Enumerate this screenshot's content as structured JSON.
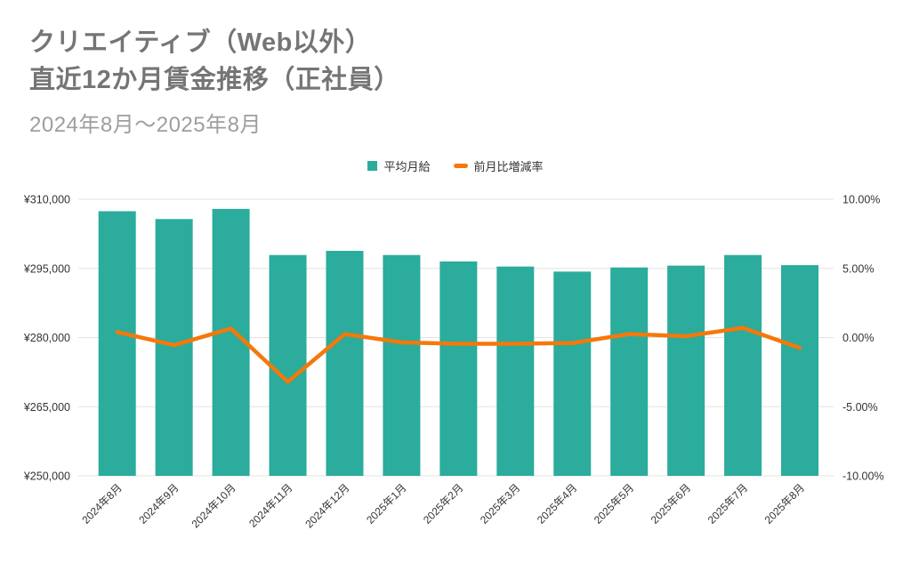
{
  "header": {
    "title": "クリエイティブ（Web以外）\n直近12か月賃金推移（正社員）",
    "subtitle": "2024年8月～2025年8月"
  },
  "legend": [
    {
      "label": "平均月給",
      "swatch": "square",
      "color": "#2BAC9C"
    },
    {
      "label": "前月比増減率",
      "swatch": "dash",
      "color": "#F5780A"
    }
  ],
  "colors": {
    "bar": "#2BAC9C",
    "line": "#F5780A",
    "grid": "#E3E3E3",
    "tick_text": "#333333",
    "title_text": "#757575",
    "subtitle_text": "#9E9E9E"
  },
  "chart_data": {
    "type": "bar",
    "subtype": "bar-with-line-overlay",
    "title": "クリエイティブ（Web以外） 直近12か月賃金推移（正社員）",
    "subtitle": "2024年8月～2025年8月",
    "grid": true,
    "legend_position": "top",
    "categories": [
      "2024年8月",
      "2024年9月",
      "2024年10月",
      "2024年11月",
      "2024年12月",
      "2025年1月",
      "2025年2月",
      "2025年3月",
      "2025年4月",
      "2025年5月",
      "2025年6月",
      "2025年7月",
      "2025年8月"
    ],
    "series": [
      {
        "name": "平均月給",
        "type": "bar",
        "axis": "left",
        "color": "#2BAC9C",
        "values": [
          307400,
          305700,
          307900,
          297900,
          298800,
          297900,
          296500,
          295400,
          294300,
          295200,
          295600,
          297900,
          295700
        ]
      },
      {
        "name": "前月比増減率",
        "type": "line",
        "axis": "right",
        "color": "#F5780A",
        "values": [
          0.4,
          -0.55,
          0.65,
          -3.2,
          0.25,
          -0.35,
          -0.45,
          -0.45,
          -0.4,
          0.25,
          0.1,
          0.7,
          -0.75
        ]
      }
    ],
    "left_axis": {
      "min": 250000,
      "max": 310000,
      "ticks": [
        "¥310,000",
        "¥295,000",
        "¥280,000",
        "¥265,000",
        "¥250,000"
      ]
    },
    "right_axis": {
      "min": -10,
      "max": 10,
      "ticks": [
        "10.00%",
        "5.00%",
        "0.00%",
        "-5.00%",
        "-10.00%"
      ]
    }
  }
}
